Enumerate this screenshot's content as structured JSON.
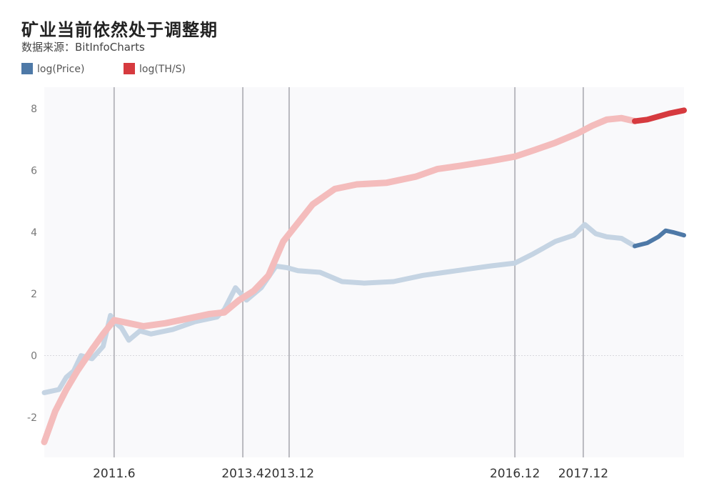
{
  "title": "矿业当前依然处于调整期",
  "subtitle": "数据来源：BitInfoCharts",
  "chart_data": {
    "type": "line",
    "title": "矿业当前依然处于调整期",
    "xlabel": "",
    "ylabel": "",
    "ylim": [
      -3.3,
      8.7
    ],
    "xlim": [
      2010.55,
      2019.25
    ],
    "yticks": [
      8,
      6,
      4,
      2,
      0,
      -2
    ],
    "grid": false,
    "legend_position": "top-left",
    "vlines": [
      {
        "label": "2011.6",
        "x": 2011.5
      },
      {
        "label": "2013.4",
        "x": 2013.25
      },
      {
        "label": "2013.12",
        "x": 2013.88
      },
      {
        "label": "2016.12",
        "x": 2016.95
      },
      {
        "label": "2017.12",
        "x": 2017.88
      }
    ],
    "highlight_from": 2018.58,
    "series": [
      {
        "name": "log(Price)",
        "color": "#4e79a7",
        "faded_color": "#c5d4e3",
        "x": [
          2010.55,
          2010.75,
          2010.85,
          2010.95,
          2011.05,
          2011.2,
          2011.35,
          2011.45,
          2011.5,
          2011.6,
          2011.7,
          2011.85,
          2012.0,
          2012.3,
          2012.6,
          2012.9,
          2013.0,
          2013.15,
          2013.3,
          2013.5,
          2013.7,
          2013.85,
          2014.0,
          2014.3,
          2014.6,
          2014.9,
          2015.3,
          2015.7,
          2016.0,
          2016.3,
          2016.6,
          2016.95,
          2017.2,
          2017.5,
          2017.75,
          2017.9,
          2018.05,
          2018.2,
          2018.4,
          2018.58,
          2018.75,
          2018.9,
          2019.0,
          2019.1,
          2019.25
        ],
        "values": [
          -1.2,
          -1.1,
          -0.7,
          -0.5,
          0.0,
          -0.1,
          0.3,
          1.3,
          1.1,
          0.9,
          0.5,
          0.8,
          0.7,
          0.85,
          1.1,
          1.25,
          1.5,
          2.2,
          1.8,
          2.2,
          2.9,
          2.85,
          2.75,
          2.7,
          2.4,
          2.35,
          2.4,
          2.6,
          2.7,
          2.8,
          2.9,
          3.0,
          3.3,
          3.7,
          3.9,
          4.25,
          3.95,
          3.85,
          3.8,
          3.55,
          3.65,
          3.85,
          4.05,
          4.0,
          3.9
        ]
      },
      {
        "name": "log(TH/S)",
        "color": "#d63a3f",
        "faded_color": "#f4bcbc",
        "x": [
          2010.55,
          2010.7,
          2010.85,
          2011.0,
          2011.2,
          2011.35,
          2011.5,
          2011.7,
          2011.9,
          2012.2,
          2012.5,
          2012.8,
          2013.0,
          2013.2,
          2013.4,
          2013.6,
          2013.8,
          2014.0,
          2014.2,
          2014.5,
          2014.8,
          2015.2,
          2015.6,
          2015.9,
          2016.2,
          2016.6,
          2016.95,
          2017.2,
          2017.5,
          2017.8,
          2018.0,
          2018.2,
          2018.4,
          2018.58,
          2018.75,
          2018.9,
          2019.05,
          2019.25
        ],
        "values": [
          -2.8,
          -1.8,
          -1.1,
          -0.5,
          0.2,
          0.7,
          1.15,
          1.05,
          0.95,
          1.05,
          1.2,
          1.35,
          1.4,
          1.8,
          2.1,
          2.6,
          3.7,
          4.3,
          4.9,
          5.4,
          5.55,
          5.6,
          5.8,
          6.05,
          6.15,
          6.3,
          6.45,
          6.65,
          6.9,
          7.2,
          7.45,
          7.65,
          7.7,
          7.6,
          7.65,
          7.75,
          7.85,
          7.95
        ]
      }
    ]
  }
}
